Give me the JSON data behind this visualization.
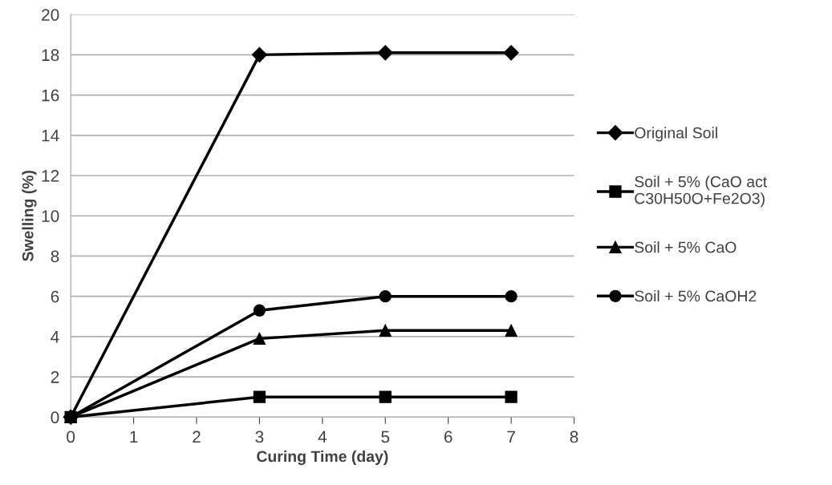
{
  "chart_data": {
    "type": "line",
    "xlabel": "Curing Time (day)",
    "ylabel": "Swelling (%)",
    "x": [
      0,
      3,
      5,
      7
    ],
    "series": [
      {
        "name": "Original Soil",
        "color": "#000000",
        "marker": "diamond",
        "values": [
          0,
          18.0,
          18.1,
          18.1
        ]
      },
      {
        "name": "Soil + 5% (CaO act C30H50O+Fe2O3)",
        "color": "#000000",
        "marker": "square",
        "values": [
          0,
          1.0,
          1.0,
          1.0
        ]
      },
      {
        "name": "Soil + 5% CaO",
        "color": "#000000",
        "marker": "triangle",
        "values": [
          0,
          3.9,
          4.3,
          4.3
        ]
      },
      {
        "name": "Soil + 5% CaOH2",
        "color": "#000000",
        "marker": "circle",
        "values": [
          0,
          5.3,
          6.0,
          6.0
        ]
      }
    ],
    "xlim": [
      0,
      8
    ],
    "xticks": [
      0,
      1,
      2,
      3,
      4,
      5,
      6,
      7,
      8
    ],
    "ylim": [
      0,
      20
    ],
    "yticks": [
      0,
      2,
      4,
      6,
      8,
      10,
      12,
      14,
      16,
      18,
      20
    ],
    "grid": "y",
    "legend": "right",
    "line_style": "solid"
  }
}
